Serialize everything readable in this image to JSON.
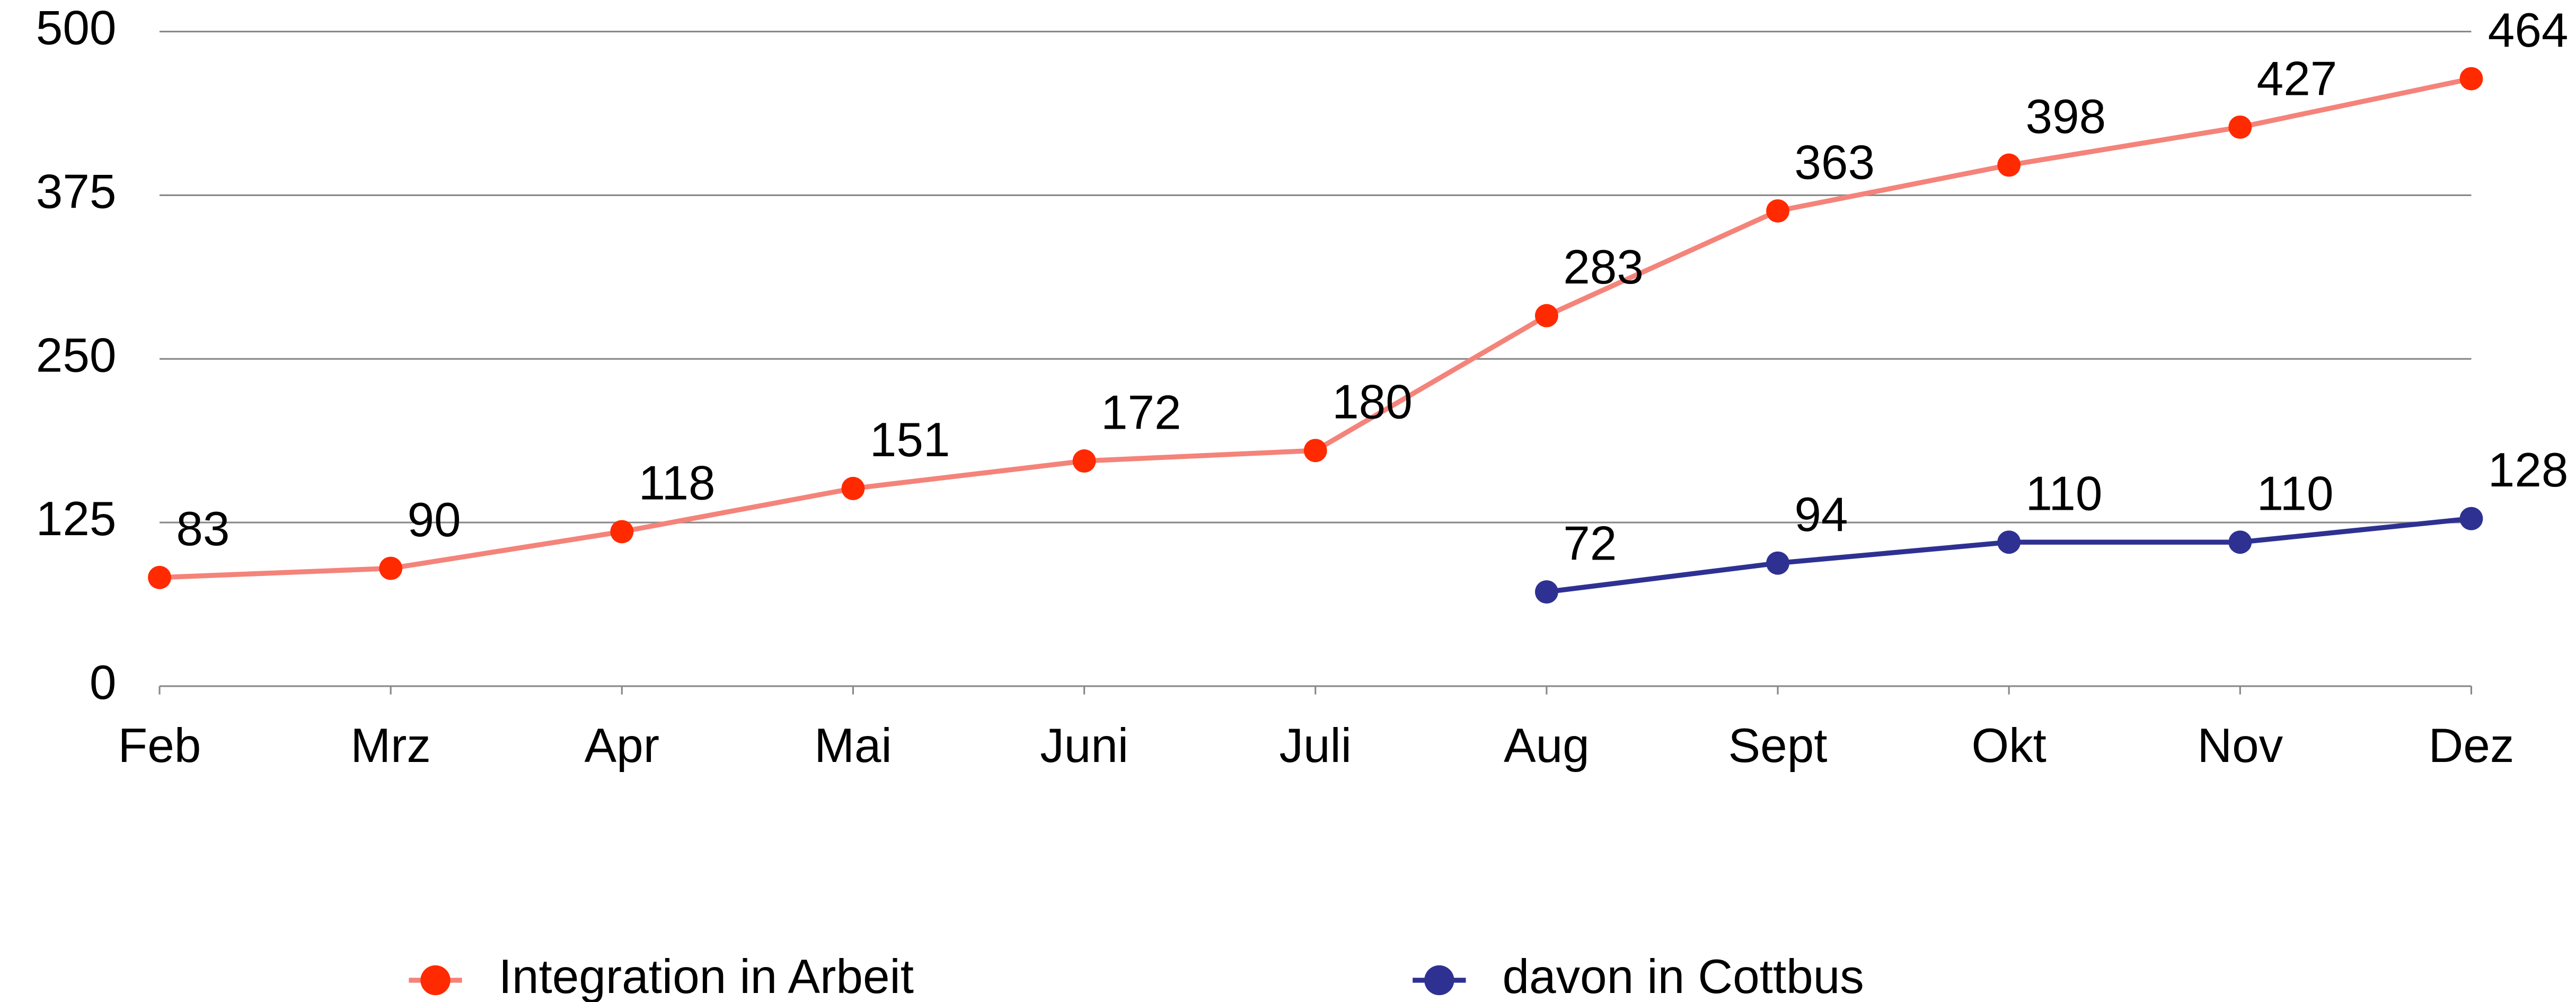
{
  "chart_data": {
    "type": "line",
    "categories": [
      "Feb",
      "Mrz",
      "Apr",
      "Mai",
      "Juni",
      "Juli",
      "Aug",
      "Sept",
      "Okt",
      "Nov",
      "Dez"
    ],
    "series": [
      {
        "name": "Integration in Arbeit",
        "color": "#ff2a00",
        "line_color": "#f4837a",
        "values": [
          83,
          90,
          118,
          151,
          172,
          180,
          283,
          363,
          398,
          427,
          464
        ]
      },
      {
        "name": "davon in Cottbus",
        "color": "#2e3192",
        "line_color": "#2e3192",
        "values": [
          null,
          null,
          null,
          null,
          null,
          null,
          72,
          94,
          110,
          110,
          128
        ]
      }
    ],
    "ylim": [
      0,
      500
    ],
    "yticks": [
      0,
      125,
      250,
      375,
      500
    ],
    "grid": true,
    "data_labels": true,
    "legend": "bottom"
  }
}
